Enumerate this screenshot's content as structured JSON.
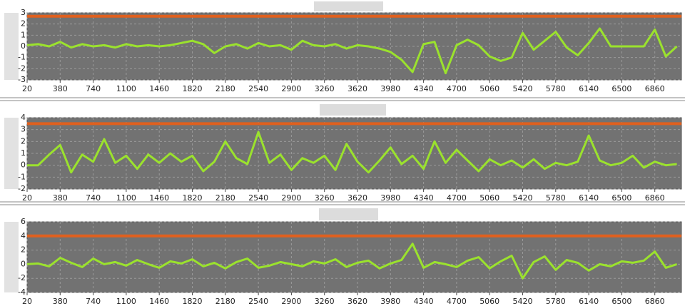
{
  "chart_data": [
    {
      "type": "line",
      "xlim": [
        20,
        7150
      ],
      "ylim": [
        -3,
        3
      ],
      "yticks": [
        -3,
        -2,
        -1,
        0,
        1,
        2,
        3
      ],
      "xticks": [
        20,
        380,
        740,
        1100,
        1460,
        1820,
        2180,
        2540,
        2900,
        3260,
        3620,
        3980,
        4340,
        4700,
        5060,
        5420,
        5780,
        6140,
        6500,
        6860
      ],
      "grid": true,
      "reference_line": {
        "value": 2.7,
        "color": "#e0601e"
      },
      "x": [
        20,
        140,
        260,
        380,
        500,
        620,
        740,
        860,
        980,
        1100,
        1220,
        1340,
        1460,
        1580,
        1700,
        1820,
        1940,
        2060,
        2180,
        2300,
        2420,
        2540,
        2660,
        2780,
        2900,
        3020,
        3140,
        3260,
        3380,
        3500,
        3620,
        3740,
        3860,
        3980,
        4100,
        4220,
        4340,
        4460,
        4580,
        4700,
        4820,
        4940,
        5060,
        5180,
        5300,
        5420,
        5540,
        5660,
        5780,
        5900,
        6020,
        6140,
        6260,
        6380,
        6500,
        6620,
        6740,
        6860,
        6980,
        7100
      ],
      "series": [
        {
          "color": "#9be22d",
          "values": [
            0.1,
            0.2,
            0.0,
            0.4,
            -0.1,
            0.2,
            0.0,
            0.1,
            -0.1,
            0.2,
            0.0,
            0.1,
            0.0,
            0.1,
            0.3,
            0.5,
            0.2,
            -0.6,
            0.0,
            0.2,
            -0.2,
            0.3,
            0.0,
            0.1,
            -0.3,
            0.5,
            0.1,
            0.0,
            0.2,
            -0.2,
            0.1,
            0.0,
            -0.2,
            -0.5,
            -1.2,
            -2.3,
            0.2,
            0.4,
            -2.4,
            0.1,
            0.6,
            0.1,
            -0.9,
            -1.3,
            -1.0,
            1.2,
            -0.3,
            0.5,
            1.3,
            -0.1,
            -0.8,
            0.3,
            1.6,
            0.0,
            0.0,
            0.0,
            0.0,
            1.5,
            -0.9,
            0.0
          ]
        }
      ]
    },
    {
      "type": "line",
      "xlim": [
        20,
        7150
      ],
      "ylim": [
        -2,
        4
      ],
      "yticks": [
        -2,
        -1,
        0,
        1,
        2,
        3,
        4
      ],
      "xticks": [
        20,
        380,
        740,
        1100,
        1460,
        1820,
        2180,
        2540,
        2900,
        3260,
        3620,
        3980,
        4340,
        4700,
        5060,
        5420,
        5780,
        6140,
        6500,
        6860
      ],
      "grid": true,
      "reference_line": {
        "value": 3.5,
        "color": "#e0601e"
      },
      "x": [
        20,
        140,
        260,
        380,
        500,
        620,
        740,
        860,
        980,
        1100,
        1220,
        1340,
        1460,
        1580,
        1700,
        1820,
        1940,
        2060,
        2180,
        2300,
        2420,
        2540,
        2660,
        2780,
        2900,
        3020,
        3140,
        3260,
        3380,
        3500,
        3620,
        3740,
        3860,
        3980,
        4100,
        4220,
        4340,
        4460,
        4580,
        4700,
        4820,
        4940,
        5060,
        5180,
        5300,
        5420,
        5540,
        5660,
        5780,
        5900,
        6020,
        6140,
        6260,
        6380,
        6500,
        6620,
        6740,
        6860,
        6980,
        7100
      ],
      "series": [
        {
          "color": "#9be22d",
          "values": [
            0.0,
            0.0,
            0.9,
            1.7,
            -0.6,
            0.9,
            0.3,
            2.2,
            0.2,
            0.8,
            -0.3,
            0.9,
            0.2,
            1.0,
            0.3,
            0.8,
            -0.5,
            0.3,
            2.0,
            0.6,
            0.1,
            2.8,
            0.2,
            0.9,
            -0.4,
            0.6,
            0.2,
            0.8,
            -0.4,
            1.8,
            0.3,
            -0.6,
            0.4,
            1.5,
            0.1,
            0.8,
            -0.3,
            2.0,
            0.2,
            1.3,
            0.4,
            -0.5,
            0.5,
            0.0,
            0.4,
            -0.2,
            0.5,
            -0.3,
            0.2,
            0.0,
            0.3,
            2.5,
            0.4,
            0.0,
            0.2,
            0.8,
            -0.2,
            0.3,
            0.0,
            0.1
          ]
        }
      ]
    },
    {
      "type": "line",
      "xlim": [
        20,
        7150
      ],
      "ylim": [
        -4,
        6
      ],
      "yticks": [
        -4,
        -2,
        0,
        2,
        4,
        6
      ],
      "xticks": [
        20,
        380,
        740,
        1100,
        1460,
        1820,
        2180,
        2540,
        2900,
        3260,
        3620,
        3980,
        4340,
        4700,
        5060,
        5420,
        5780,
        6140,
        6500,
        6860
      ],
      "grid": true,
      "reference_line": {
        "value": 4,
        "color": "#e0601e"
      },
      "x": [
        20,
        140,
        260,
        380,
        500,
        620,
        740,
        860,
        980,
        1100,
        1220,
        1340,
        1460,
        1580,
        1700,
        1820,
        1940,
        2060,
        2180,
        2300,
        2420,
        2540,
        2660,
        2780,
        2900,
        3020,
        3140,
        3260,
        3380,
        3500,
        3620,
        3740,
        3860,
        3980,
        4100,
        4220,
        4340,
        4460,
        4580,
        4700,
        4820,
        4940,
        5060,
        5180,
        5300,
        5420,
        5540,
        5660,
        5780,
        5900,
        6020,
        6140,
        6260,
        6380,
        6500,
        6620,
        6740,
        6860,
        6980,
        7100
      ],
      "series": [
        {
          "color": "#9be22d",
          "values": [
            0.0,
            0.1,
            -0.3,
            0.9,
            0.2,
            -0.4,
            0.8,
            0.0,
            0.3,
            -0.2,
            0.6,
            0.0,
            -0.5,
            0.4,
            0.1,
            0.7,
            -0.3,
            0.2,
            -0.6,
            0.3,
            0.8,
            -0.5,
            -0.2,
            0.3,
            0.0,
            -0.3,
            0.4,
            0.1,
            0.7,
            -0.4,
            0.2,
            0.5,
            -0.6,
            0.1,
            0.6,
            2.9,
            -0.5,
            0.3,
            0.0,
            -0.4,
            0.5,
            1.0,
            -0.6,
            0.4,
            1.2,
            -2.0,
            0.3,
            1.1,
            -0.8,
            0.6,
            0.2,
            -0.9,
            0.0,
            -0.3,
            0.4,
            0.2,
            0.5,
            1.8,
            -0.5,
            0.0
          ]
        }
      ]
    }
  ]
}
